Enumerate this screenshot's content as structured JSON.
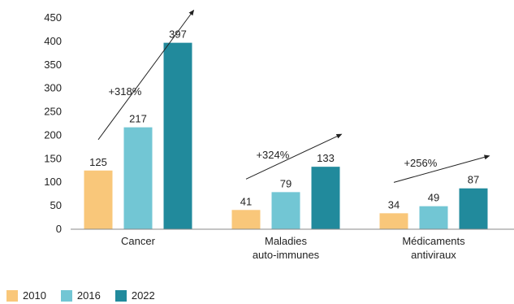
{
  "chart_data": {
    "type": "bar",
    "title": "",
    "xlabel": "",
    "ylabel": "",
    "categories": [
      [
        "Cancer"
      ],
      [
        "Maladies",
        "auto-immunes"
      ],
      [
        "Médicaments",
        "antiviraux"
      ]
    ],
    "series": [
      {
        "name": "2010",
        "color": "#f9c77a",
        "values": [
          125,
          41,
          34
        ]
      },
      {
        "name": "2016",
        "color": "#72c6d4",
        "values": [
          217,
          79,
          49
        ]
      },
      {
        "name": "2022",
        "color": "#218a9c",
        "values": [
          397,
          133,
          87
        ]
      }
    ],
    "ylim": [
      0,
      450
    ],
    "yticks": [
      0,
      50,
      100,
      150,
      200,
      250,
      300,
      350,
      400,
      450
    ],
    "grid": false,
    "legend_position": "bottom-left",
    "annotations": [
      {
        "text": "+318%",
        "category": 0
      },
      {
        "text": "+324%",
        "category": 1
      },
      {
        "text": "+256%",
        "category": 2
      }
    ]
  }
}
